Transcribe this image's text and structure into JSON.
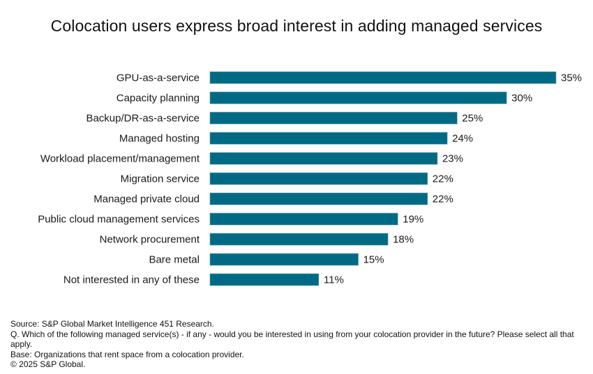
{
  "chart_data": {
    "type": "bar",
    "orientation": "horizontal",
    "title": "Colocation users express broad interest in adding managed services",
    "categories": [
      "GPU-as-a-service",
      "Capacity planning",
      "Backup/DR-as-a-service",
      "Managed hosting",
      "Workload placement/management",
      "Migration service",
      "Managed private cloud",
      "Public cloud management services",
      "Network procurement",
      "Bare metal",
      "Not interested in any of these"
    ],
    "values": [
      35,
      30,
      25,
      24,
      23,
      22,
      22,
      19,
      18,
      15,
      11
    ],
    "value_labels": [
      "35%",
      "30%",
      "25%",
      "24%",
      "23%",
      "22%",
      "22%",
      "19%",
      "18%",
      "15%",
      "11%"
    ],
    "xlabel": "",
    "ylabel": "",
    "xlim": [
      0,
      35
    ],
    "grid": false,
    "legend": "none",
    "bar_color": "#006a84"
  },
  "footer": {
    "source": "Source: S&P Global Market Intelligence 451 Research.",
    "question": "Q. Which of the following managed service(s) - if any - would you be interested in using from your colocation provider in the future? Please select all that apply.",
    "base": "Base: Organizations that rent space from a colocation provider.",
    "copyright": "© 2025 S&P Global."
  }
}
